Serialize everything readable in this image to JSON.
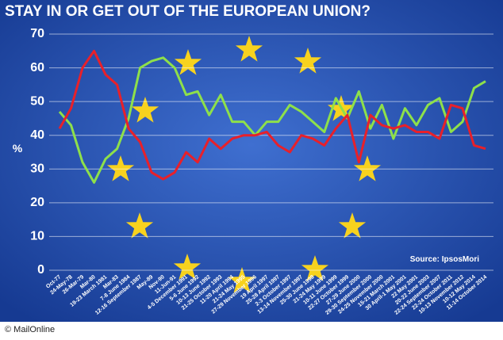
{
  "chart_data": {
    "type": "line",
    "title": "STAY IN OR GET OUT OF THE EUROPEAN UNION?",
    "y_label": "%",
    "source": "Source: IpsosMori",
    "credit": "© MailOnline",
    "categories": [
      "Oct-77",
      "24-May-78",
      "26-Mar-79",
      "Mar-80",
      "19-23 March 1981",
      "Mar-83",
      "7-8 June 1984",
      "12-16 September 1987",
      "May-89",
      "Nov-90",
      "11-Jun-91",
      "4-5 December 1991",
      "5-6 June 1992",
      "10-13 June 1992",
      "21-25 October 1993",
      "11-20 April 1994",
      "21-24 May 1995",
      "27-29 November 1996",
      "19 April 1997",
      "25-28 April 1997",
      "2-3 October 1997",
      "13-14 November 1997",
      "25-30 June 1998",
      "21-24 May 1999",
      "10-11 June 1999",
      "22-27 October 1999",
      "27-29 June 2000",
      "29-30 September 2000",
      "24-25 November 2000",
      "15-21 March 2001",
      "30 April-1 May 2001",
      "22 May 2001",
      "20-22 June 2003",
      "22-24 September 2007",
      "22-24 October 2011",
      "10-13 November 2012",
      "10-12 May 2014",
      "11-14 October 2014"
    ],
    "series": [
      {
        "color": "#8ee04a",
        "values": [
          47,
          43,
          32,
          26,
          33,
          36,
          45,
          60,
          62,
          63,
          60,
          52,
          53,
          46,
          52,
          44,
          44,
          40,
          44,
          44,
          49,
          47,
          44,
          41,
          51,
          45,
          53,
          42,
          49,
          39,
          48,
          43,
          49,
          51,
          41,
          44,
          54,
          56
        ]
      },
      {
        "color": "#e8202a",
        "values": [
          42,
          48,
          60,
          65,
          58,
          55,
          42,
          38,
          29,
          27,
          29,
          35,
          32,
          39,
          36,
          39,
          40,
          40,
          41,
          37,
          35,
          40,
          39,
          37,
          42,
          46,
          32,
          46,
          43,
          42,
          43,
          41,
          41,
          39,
          49,
          48,
          37,
          36
        ]
      }
    ],
    "ylim": [
      0,
      70
    ],
    "yticks": [
      0,
      10,
      20,
      30,
      40,
      50,
      60,
      70
    ],
    "grid": true
  }
}
